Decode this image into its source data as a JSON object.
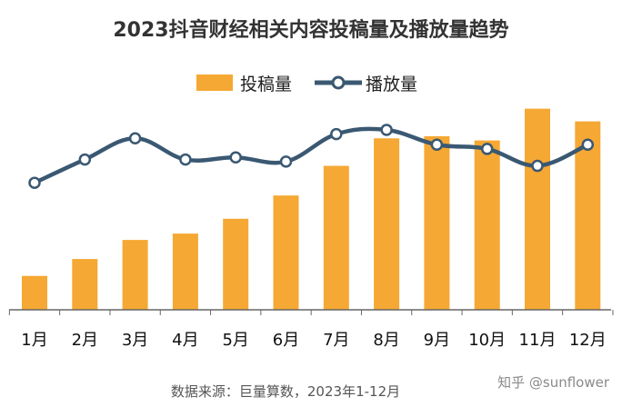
{
  "chart_data": {
    "type": "bar+line",
    "title": "2023抖音财经相关内容投稿量及播放量趋势",
    "categories": [
      "1月",
      "2月",
      "3月",
      "4月",
      "5月",
      "6月",
      "7月",
      "8月",
      "9月",
      "10月",
      "11月",
      "12月"
    ],
    "series": [
      {
        "name": "投稿量",
        "type": "bar",
        "color": "#F5A833",
        "values": [
          16,
          24,
          33,
          36,
          43,
          54,
          68,
          81,
          82,
          80,
          95,
          89
        ]
      },
      {
        "name": "播放量",
        "type": "line",
        "color": "#3A5872",
        "values": [
          60,
          71,
          81,
          71,
          72,
          70,
          83,
          85,
          78,
          76,
          68,
          78
        ]
      }
    ],
    "ylim": [
      0,
      100
    ],
    "grid": false,
    "legend": "top-center",
    "source": "数据来源：巨量算数，2023年1-12月",
    "watermark": "知乎 @sunflower"
  }
}
